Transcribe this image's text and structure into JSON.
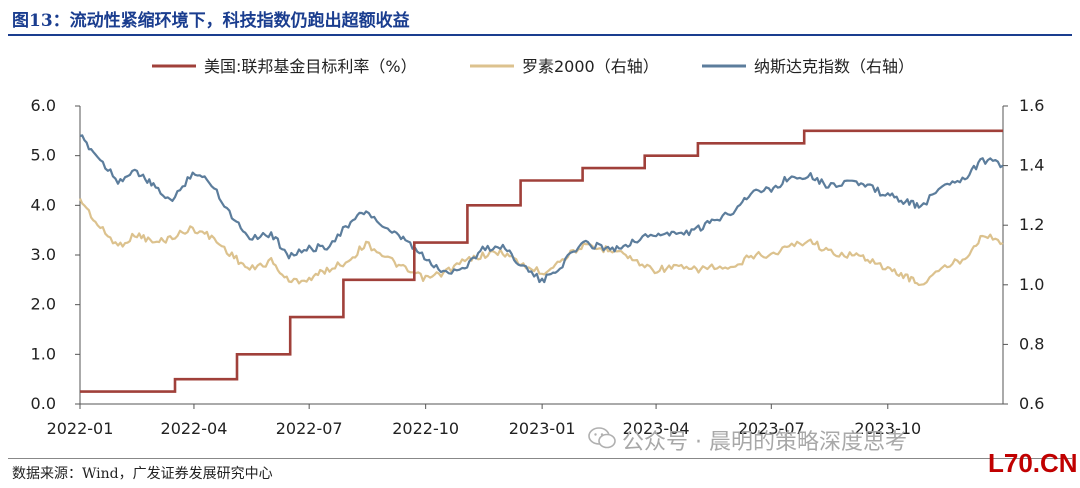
{
  "header": {
    "figure_title": "图13：流动性紧缩环境下，科技指数仍跑出超额收益"
  },
  "footer": {
    "source": "数据来源：Wind，广发证券发展研究中心",
    "watermark": "公众号 · 晨明的策略深度思考",
    "site_mark": "L70.CN"
  },
  "colors": {
    "fed_rate": "#A0403A",
    "russell": "#DCC28E",
    "nasdaq": "#5C7D9C",
    "title": "#1a3d8f"
  },
  "chart_data": {
    "type": "line",
    "title": "",
    "legend_position": "top",
    "grid": false,
    "x_ticks": [
      "2022-01",
      "2022-04",
      "2022-07",
      "2022-10",
      "2023-01",
      "2023-04",
      "2023-07",
      "2023-10"
    ],
    "x_range": [
      "2022-01-01",
      "2023-12-31"
    ],
    "y_left": {
      "range": [
        0,
        6
      ],
      "ticks": [
        "0.0",
        "1.0",
        "2.0",
        "3.0",
        "4.0",
        "5.0",
        "6.0"
      ]
    },
    "y_right": {
      "range": [
        0.6,
        1.6
      ],
      "ticks": [
        "0.6",
        "0.8",
        "1.0",
        "1.2",
        "1.4",
        "1.6"
      ]
    },
    "series": [
      {
        "name": "美国:联邦基金目标利率（%）",
        "axis": "left",
        "step": true,
        "points": [
          [
            "2022-01-01",
            0.25
          ],
          [
            "2022-03-17",
            0.5
          ],
          [
            "2022-05-05",
            1.0
          ],
          [
            "2022-06-16",
            1.75
          ],
          [
            "2022-07-28",
            2.5
          ],
          [
            "2022-09-22",
            3.25
          ],
          [
            "2022-11-03",
            4.0
          ],
          [
            "2022-12-15",
            4.5
          ],
          [
            "2023-02-02",
            4.75
          ],
          [
            "2023-03-23",
            5.0
          ],
          [
            "2023-05-04",
            5.25
          ],
          [
            "2023-07-27",
            5.5
          ],
          [
            "2023-12-31",
            5.5
          ]
        ]
      },
      {
        "name": "罗素2000（右轴）",
        "axis": "right",
        "points": [
          [
            "2022-01-01",
            1.29
          ],
          [
            "2022-01-15",
            1.2
          ],
          [
            "2022-01-31",
            1.13
          ],
          [
            "2022-02-15",
            1.17
          ],
          [
            "2022-03-01",
            1.14
          ],
          [
            "2022-03-15",
            1.16
          ],
          [
            "2022-03-31",
            1.19
          ],
          [
            "2022-04-15",
            1.16
          ],
          [
            "2022-05-01",
            1.1
          ],
          [
            "2022-05-15",
            1.05
          ],
          [
            "2022-06-01",
            1.08
          ],
          [
            "2022-06-15",
            1.01
          ],
          [
            "2022-07-01",
            1.02
          ],
          [
            "2022-07-15",
            1.05
          ],
          [
            "2022-08-01",
            1.08
          ],
          [
            "2022-08-15",
            1.14
          ],
          [
            "2022-09-01",
            1.09
          ],
          [
            "2022-09-15",
            1.05
          ],
          [
            "2022-10-01",
            1.02
          ],
          [
            "2022-10-15",
            1.04
          ],
          [
            "2022-11-01",
            1.08
          ],
          [
            "2022-11-15",
            1.1
          ],
          [
            "2022-12-01",
            1.11
          ],
          [
            "2022-12-15",
            1.07
          ],
          [
            "2023-01-01",
            1.04
          ],
          [
            "2023-01-15",
            1.08
          ],
          [
            "2023-02-01",
            1.13
          ],
          [
            "2023-02-15",
            1.12
          ],
          [
            "2023-03-01",
            1.12
          ],
          [
            "2023-03-15",
            1.08
          ],
          [
            "2023-03-31",
            1.05
          ],
          [
            "2023-04-15",
            1.06
          ],
          [
            "2023-05-01",
            1.05
          ],
          [
            "2023-05-15",
            1.06
          ],
          [
            "2023-06-01",
            1.05
          ],
          [
            "2023-06-15",
            1.1
          ],
          [
            "2023-07-01",
            1.1
          ],
          [
            "2023-07-15",
            1.13
          ],
          [
            "2023-08-01",
            1.15
          ],
          [
            "2023-08-15",
            1.11
          ],
          [
            "2023-09-01",
            1.1
          ],
          [
            "2023-09-15",
            1.09
          ],
          [
            "2023-10-01",
            1.05
          ],
          [
            "2023-10-15",
            1.03
          ],
          [
            "2023-10-27",
            1.0
          ],
          [
            "2023-11-15",
            1.06
          ],
          [
            "2023-12-01",
            1.09
          ],
          [
            "2023-12-15",
            1.17
          ],
          [
            "2023-12-31",
            1.14
          ]
        ]
      },
      {
        "name": "纳斯达克指数（右轴）",
        "axis": "right",
        "points": [
          [
            "2022-01-01",
            1.5
          ],
          [
            "2022-01-15",
            1.43
          ],
          [
            "2022-01-31",
            1.35
          ],
          [
            "2022-02-15",
            1.38
          ],
          [
            "2022-02-28",
            1.33
          ],
          [
            "2022-03-15",
            1.28
          ],
          [
            "2022-03-31",
            1.38
          ],
          [
            "2022-04-15",
            1.34
          ],
          [
            "2022-05-01",
            1.23
          ],
          [
            "2022-05-15",
            1.16
          ],
          [
            "2022-06-01",
            1.17
          ],
          [
            "2022-06-15",
            1.1
          ],
          [
            "2022-07-01",
            1.12
          ],
          [
            "2022-07-15",
            1.13
          ],
          [
            "2022-08-01",
            1.2
          ],
          [
            "2022-08-15",
            1.25
          ],
          [
            "2022-09-01",
            1.18
          ],
          [
            "2022-09-15",
            1.15
          ],
          [
            "2022-09-30",
            1.09
          ],
          [
            "2022-10-15",
            1.04
          ],
          [
            "2022-11-01",
            1.06
          ],
          [
            "2022-11-15",
            1.12
          ],
          [
            "2022-12-01",
            1.13
          ],
          [
            "2022-12-15",
            1.07
          ],
          [
            "2023-01-01",
            1.01
          ],
          [
            "2023-01-15",
            1.06
          ],
          [
            "2023-02-01",
            1.14
          ],
          [
            "2023-02-15",
            1.13
          ],
          [
            "2023-03-01",
            1.12
          ],
          [
            "2023-03-15",
            1.15
          ],
          [
            "2023-04-01",
            1.17
          ],
          [
            "2023-04-15",
            1.17
          ],
          [
            "2023-05-01",
            1.18
          ],
          [
            "2023-05-15",
            1.21
          ],
          [
            "2023-06-01",
            1.25
          ],
          [
            "2023-06-15",
            1.31
          ],
          [
            "2023-07-01",
            1.32
          ],
          [
            "2023-07-15",
            1.36
          ],
          [
            "2023-08-01",
            1.37
          ],
          [
            "2023-08-15",
            1.33
          ],
          [
            "2023-09-01",
            1.35
          ],
          [
            "2023-09-15",
            1.33
          ],
          [
            "2023-10-01",
            1.3
          ],
          [
            "2023-10-15",
            1.28
          ],
          [
            "2023-10-27",
            1.26
          ],
          [
            "2023-11-15",
            1.34
          ],
          [
            "2023-12-01",
            1.36
          ],
          [
            "2023-12-15",
            1.42
          ],
          [
            "2023-12-31",
            1.4
          ]
        ]
      }
    ]
  }
}
